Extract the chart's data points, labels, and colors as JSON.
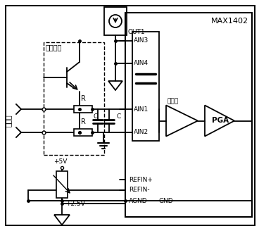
{
  "title": "MAX1402",
  "bg_color": "#ffffff",
  "line_color": "#000000",
  "text_color": "#000000",
  "fig_width": 3.68,
  "fig_height": 3.28,
  "dpi": 100,
  "labels": {
    "max1402": "MAX1402",
    "lian_jie_mo_kuai": "连接模块",
    "re_dian_ou": "热电偶",
    "huan_chong_qi": "缓冲器",
    "PGA": "PGA",
    "OUT1": "OUT1",
    "AIN3": "AIN3",
    "AIN4": "AIN4",
    "AIN1": "AIN1",
    "AIN2": "AIN2",
    "REFIN_plus": "REFIN+",
    "REFIN_minus": "REFIN-",
    "AGND": "AGND",
    "GND": "GND",
    "plus5V": "+5V",
    "plus2p5V": "+2.5V",
    "R": "R",
    "C": "C"
  }
}
